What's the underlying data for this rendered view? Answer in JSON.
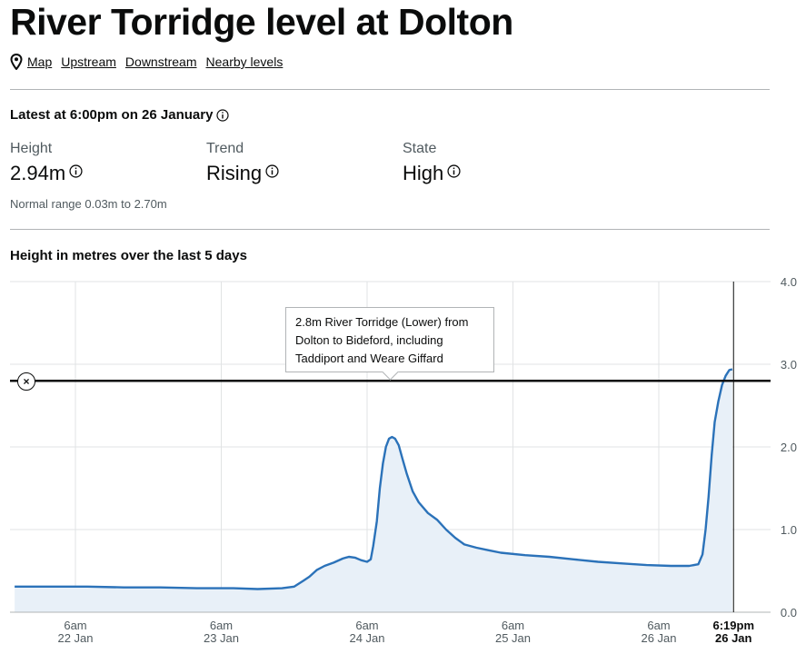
{
  "page": {
    "title": "River Torridge level at Dolton",
    "links": [
      "Map",
      "Upstream",
      "Downstream",
      "Nearby levels"
    ]
  },
  "latest": {
    "heading": "Latest at 6:00pm on 26 January",
    "height_label": "Height",
    "height_value": "2.94m",
    "trend_label": "Trend",
    "trend_value": "Rising",
    "state_label": "State",
    "state_value": "High",
    "normal_range": "Normal range 0.03m to 2.70m"
  },
  "chart_title": "Height in metres over the last 5 days",
  "threshold": {
    "value": 2.8,
    "text": [
      "2.8m River Torridge (Lower) from",
      "Dolton to Bideford, including",
      "Taddiport and Weare Giffard"
    ]
  },
  "colors": {
    "line": "#2b72b9",
    "area": "#e8f0f8",
    "grid": "#e1e3e4",
    "text": "#505a5f",
    "threshold": "#0b0c0c"
  },
  "chart_data": {
    "type": "area",
    "title": "Height in metres over the last 5 days",
    "x_unit": "hours since 00:00 22 Jan",
    "ylim": [
      0,
      4
    ],
    "yticks": [
      0,
      1,
      2,
      3,
      4
    ],
    "ytick_labels": [
      "0.0",
      "1.0",
      "2.0",
      "3.0",
      "4.0"
    ],
    "xticks": [
      {
        "x": 6,
        "time": "6am",
        "date": "22 Jan"
      },
      {
        "x": 30,
        "time": "6am",
        "date": "23 Jan"
      },
      {
        "x": 54,
        "time": "6am",
        "date": "24 Jan"
      },
      {
        "x": 78,
        "time": "6am",
        "date": "25 Jan"
      },
      {
        "x": 102,
        "time": "6am",
        "date": "26 Jan"
      }
    ],
    "now": {
      "x": 114.3,
      "time": "6:19pm",
      "date": "26 Jan"
    },
    "grid": true,
    "points": [
      [
        -4,
        0.31
      ],
      [
        2,
        0.31
      ],
      [
        8,
        0.31
      ],
      [
        14,
        0.3
      ],
      [
        20,
        0.3
      ],
      [
        26,
        0.29
      ],
      [
        32,
        0.29
      ],
      [
        36,
        0.28
      ],
      [
        40,
        0.29
      ],
      [
        42,
        0.31
      ],
      [
        43.5,
        0.38
      ],
      [
        44.5,
        0.43
      ],
      [
        45.7,
        0.51
      ],
      [
        47,
        0.56
      ],
      [
        48.5,
        0.6
      ],
      [
        50,
        0.65
      ],
      [
        51,
        0.67
      ],
      [
        52,
        0.66
      ],
      [
        53,
        0.63
      ],
      [
        54,
        0.61
      ],
      [
        54.6,
        0.64
      ],
      [
        55,
        0.8
      ],
      [
        55.6,
        1.1
      ],
      [
        56.1,
        1.5
      ],
      [
        56.6,
        1.8
      ],
      [
        57.1,
        2.0
      ],
      [
        57.6,
        2.1
      ],
      [
        58.1,
        2.12
      ],
      [
        58.6,
        2.1
      ],
      [
        59.2,
        2.02
      ],
      [
        59.8,
        1.86
      ],
      [
        60.5,
        1.68
      ],
      [
        61.5,
        1.46
      ],
      [
        62.5,
        1.33
      ],
      [
        64,
        1.2
      ],
      [
        65.5,
        1.12
      ],
      [
        67,
        1.0
      ],
      [
        68.5,
        0.9
      ],
      [
        70,
        0.82
      ],
      [
        72,
        0.78
      ],
      [
        74,
        0.75
      ],
      [
        76,
        0.72
      ],
      [
        80,
        0.69
      ],
      [
        84,
        0.67
      ],
      [
        88,
        0.64
      ],
      [
        92,
        0.61
      ],
      [
        96,
        0.59
      ],
      [
        100,
        0.57
      ],
      [
        104,
        0.56
      ],
      [
        107,
        0.56
      ],
      [
        108.5,
        0.58
      ],
      [
        109.2,
        0.7
      ],
      [
        109.7,
        1.0
      ],
      [
        110.2,
        1.4
      ],
      [
        110.7,
        1.9
      ],
      [
        111.2,
        2.3
      ],
      [
        111.8,
        2.55
      ],
      [
        112.4,
        2.75
      ],
      [
        113,
        2.86
      ],
      [
        113.6,
        2.93
      ],
      [
        114.1,
        2.94
      ]
    ]
  }
}
